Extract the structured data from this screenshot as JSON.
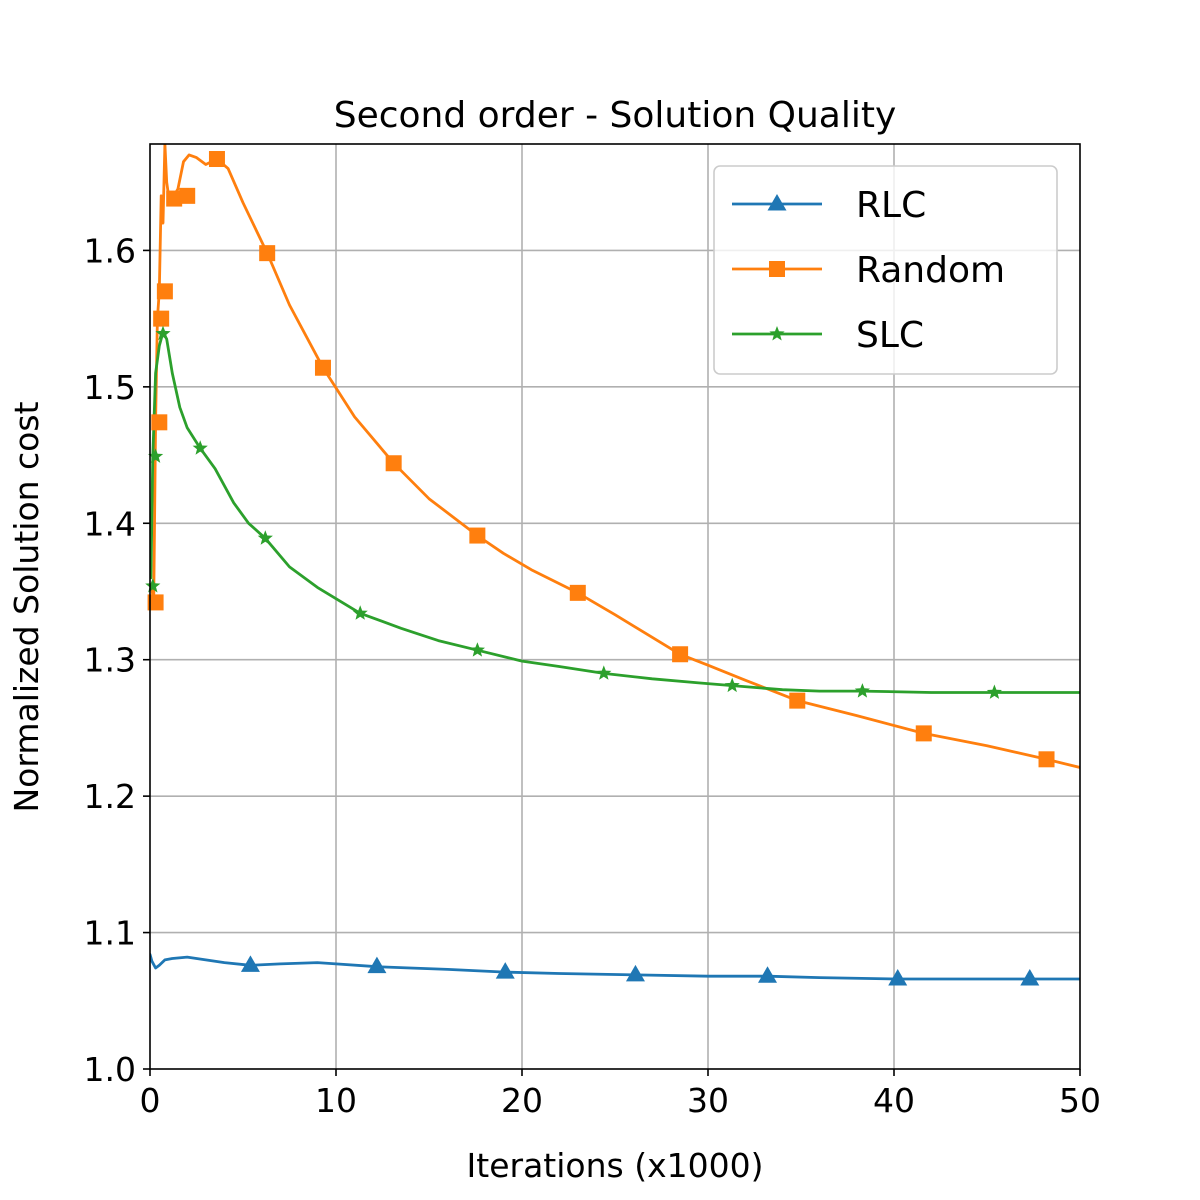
{
  "chart_data": {
    "type": "line",
    "title": "Second order - Solution Quality",
    "xlabel": "Iterations (x1000)",
    "ylabel": "Normalized Solution cost",
    "xlim": [
      0,
      50
    ],
    "ylim": [
      1.0,
      1.678
    ],
    "xticks": [
      "0",
      "10",
      "20",
      "30",
      "40",
      "50"
    ],
    "yticks": [
      "1.0",
      "1.1",
      "1.2",
      "1.3",
      "1.4",
      "1.5",
      "1.6"
    ],
    "grid": true,
    "legend_position": "top-right",
    "series": [
      {
        "name": "RLC",
        "color": "#1f77b4",
        "marker": "triangle",
        "x": [
          0,
          0.1,
          0.3,
          0.5,
          0.8,
          1.2,
          2,
          3,
          4,
          5.4,
          7,
          9,
          10,
          12.2,
          14,
          16,
          19.1,
          22,
          26.1,
          30,
          33.2,
          36,
          40.2,
          44,
          47.3,
          50
        ],
        "y": [
          1.084,
          1.079,
          1.074,
          1.076,
          1.08,
          1.081,
          1.082,
          1.08,
          1.078,
          1.076,
          1.077,
          1.078,
          1.077,
          1.075,
          1.074,
          1.073,
          1.071,
          1.07,
          1.069,
          1.068,
          1.068,
          1.067,
          1.066,
          1.066,
          1.066,
          1.066
        ],
        "marker_x": [
          5.4,
          12.2,
          19.1,
          26.1,
          33.2,
          40.2,
          47.3
        ],
        "marker_y": [
          1.076,
          1.075,
          1.071,
          1.069,
          1.068,
          1.066,
          1.066
        ]
      },
      {
        "name": "Random",
        "color": "#ff7f0e",
        "marker": "square",
        "x": [
          0.1,
          0.2,
          0.3,
          0.4,
          0.5,
          0.6,
          0.7,
          0.8,
          0.9,
          1.0,
          1.2,
          1.5,
          1.8,
          2.1,
          2.5,
          3.0,
          3.6,
          4.2,
          5,
          6.3,
          7.5,
          9.3,
          11,
          13.1,
          15,
          17.6,
          19,
          20.5,
          23.0,
          25,
          28.5,
          30,
          32,
          34.8,
          38,
          41.6,
          45,
          48.2,
          50
        ],
        "y": [
          1.352,
          1.342,
          1.475,
          1.55,
          1.57,
          1.64,
          1.62,
          1.678,
          1.65,
          1.64,
          1.638,
          1.645,
          1.665,
          1.67,
          1.668,
          1.663,
          1.667,
          1.66,
          1.635,
          1.598,
          1.56,
          1.514,
          1.478,
          1.444,
          1.418,
          1.391,
          1.378,
          1.366,
          1.349,
          1.333,
          1.304,
          1.296,
          1.285,
          1.27,
          1.259,
          1.246,
          1.237,
          1.227,
          1.221
        ],
        "marker_x": [
          0.3,
          0.5,
          0.6,
          0.8,
          1.3,
          2.0,
          3.6,
          6.3,
          9.3,
          13.1,
          17.6,
          23.0,
          28.5,
          34.8,
          41.6,
          48.2
        ],
        "marker_y": [
          1.342,
          1.474,
          1.55,
          1.57,
          1.638,
          1.64,
          1.667,
          1.598,
          1.514,
          1.444,
          1.391,
          1.349,
          1.304,
          1.27,
          1.246,
          1.227
        ]
      },
      {
        "name": "SLC",
        "color": "#2ca02c",
        "marker": "star",
        "x": [
          0.05,
          0.15,
          0.3,
          0.5,
          0.7,
          0.9,
          1.2,
          1.6,
          2.0,
          2.7,
          3.5,
          4.5,
          5.3,
          6.2,
          7.5,
          9,
          11.3,
          13.5,
          15.5,
          17.6,
          20,
          22,
          24.4,
          27,
          29.5,
          31.3,
          34,
          36,
          38.3,
          42,
          45.4,
          48,
          50
        ],
        "y": [
          1.36,
          1.449,
          1.51,
          1.53,
          1.54,
          1.535,
          1.51,
          1.485,
          1.47,
          1.455,
          1.44,
          1.415,
          1.4,
          1.389,
          1.368,
          1.353,
          1.334,
          1.323,
          1.314,
          1.307,
          1.299,
          1.295,
          1.29,
          1.286,
          1.283,
          1.281,
          1.278,
          1.277,
          1.277,
          1.276,
          1.276,
          1.276,
          1.276
        ],
        "marker_x": [
          0.15,
          0.3,
          0.7,
          2.7,
          6.2,
          11.3,
          17.6,
          24.4,
          31.3,
          38.3,
          45.4
        ],
        "marker_y": [
          1.354,
          1.449,
          1.539,
          1.455,
          1.389,
          1.334,
          1.307,
          1.29,
          1.281,
          1.277,
          1.276
        ]
      }
    ]
  }
}
